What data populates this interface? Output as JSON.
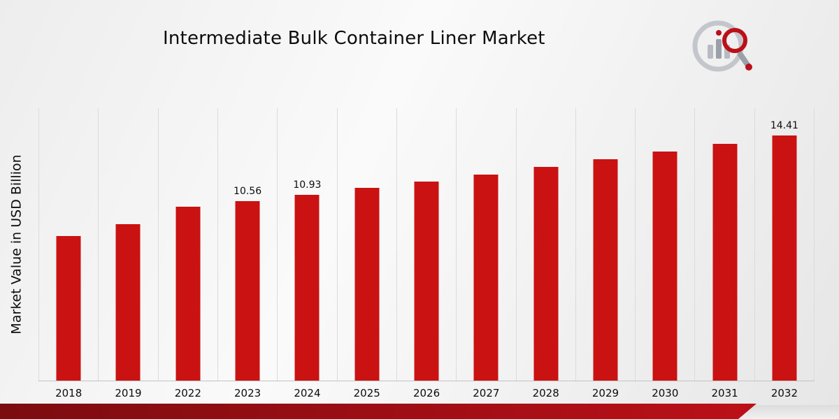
{
  "title": "Intermediate Bulk Container Liner Market",
  "y_axis_label": "Market Value in USD Billion",
  "colors": {
    "bar": "#cb1212",
    "ribbon_dark": "#7c0c10",
    "ribbon_red": "#bc1018"
  },
  "logo_icon": "market-research-magnifier-bars-logo",
  "chart_data": {
    "type": "bar",
    "title": "Intermediate Bulk Container Liner Market",
    "xlabel": "",
    "ylabel": "Market Value in USD Billion",
    "categories": [
      "2018",
      "2019",
      "2022",
      "2023",
      "2024",
      "2025",
      "2026",
      "2027",
      "2028",
      "2029",
      "2030",
      "2031",
      "2032"
    ],
    "values": [
      8.5,
      9.2,
      10.2,
      10.56,
      10.93,
      11.31,
      11.71,
      12.12,
      12.55,
      12.99,
      13.44,
      13.92,
      14.41
    ],
    "data_labels": {
      "2023": "10.56",
      "2024": "10.93",
      "2032": "14.41"
    },
    "ylim": [
      0,
      16
    ],
    "grid": "vertical",
    "legend": "none"
  }
}
